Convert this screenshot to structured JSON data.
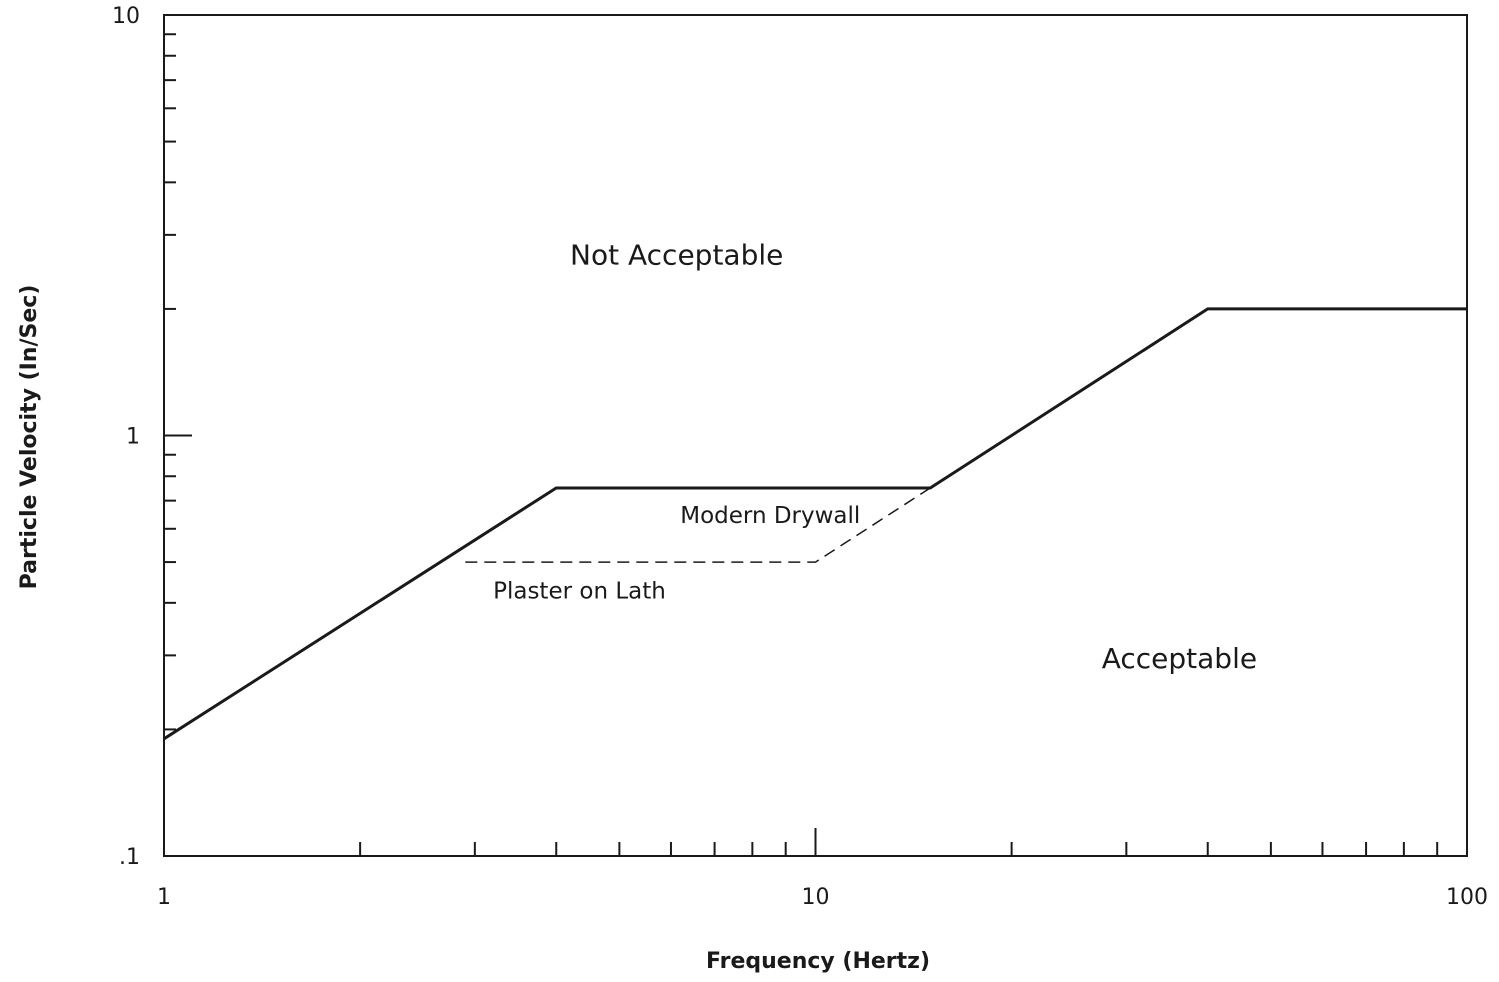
{
  "chart_data": {
    "type": "line",
    "title": "",
    "xlabel": "Frequency (Hertz)",
    "ylabel": "Particle Velocity (In/Sec)",
    "x_scale": "log",
    "y_scale": "log",
    "xlim": [
      1,
      100
    ],
    "ylim": [
      0.1,
      10
    ],
    "x_ticks": [
      {
        "value": 1,
        "label": "1"
      },
      {
        "value": 10,
        "label": "10"
      },
      {
        "value": 100,
        "label": "100"
      }
    ],
    "y_ticks": [
      {
        "value": 0.1,
        "label": ".1"
      },
      {
        "value": 1,
        "label": "1"
      },
      {
        "value": 10,
        "label": "10"
      }
    ],
    "grid": false,
    "series": [
      {
        "name": "Modern Drywall",
        "style": "solid",
        "x": [
          1,
          4,
          15,
          40,
          100
        ],
        "y": [
          0.19,
          0.75,
          0.75,
          2.0,
          2.0
        ]
      },
      {
        "name": "Plaster on Lath",
        "style": "dashed",
        "x": [
          2.9,
          10,
          15
        ],
        "y": [
          0.5,
          0.5,
          0.75
        ]
      }
    ],
    "annotations": [
      {
        "text": "Not Acceptable",
        "x": 4.2,
        "y": 2.55,
        "kind": "region"
      },
      {
        "text": "Acceptable",
        "x": 27.5,
        "y": 0.28,
        "kind": "region"
      },
      {
        "text": "Modern Drywall",
        "x": 6.2,
        "y": 0.62,
        "kind": "curve"
      },
      {
        "text": "Plaster on Lath",
        "x": 3.2,
        "y": 0.41,
        "kind": "curve-left"
      }
    ],
    "colors": {
      "line": "#1a1a1a",
      "text": "#1a1a1a",
      "background": "#ffffff"
    }
  }
}
